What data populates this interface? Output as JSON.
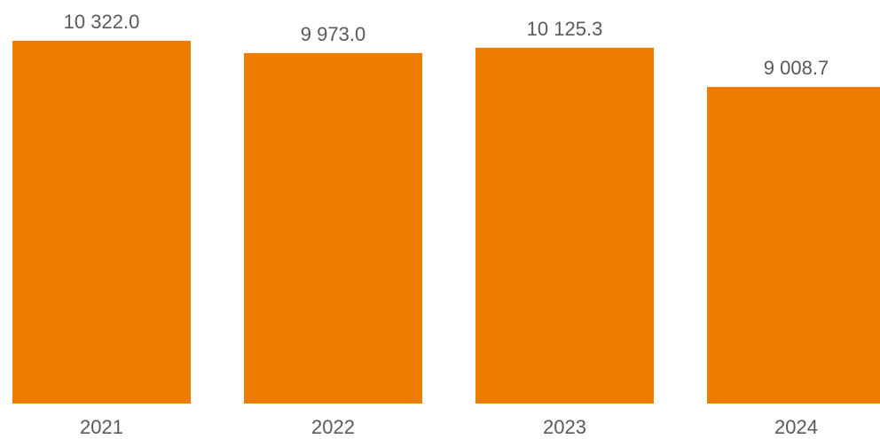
{
  "chart_data": {
    "type": "bar",
    "title": "",
    "xlabel": "",
    "ylabel": "",
    "categories": [
      "2021",
      "2022",
      "2023",
      "2024"
    ],
    "values": [
      10322.0,
      9973.0,
      10125.3,
      9008.7
    ],
    "data_labels": [
      "10 322.0",
      "9 973.0",
      "10 125.3",
      "9 008.7"
    ],
    "ylim": [
      0,
      10322.0
    ],
    "grid": false,
    "legend": "none",
    "bar_color": "#ED7D00"
  }
}
